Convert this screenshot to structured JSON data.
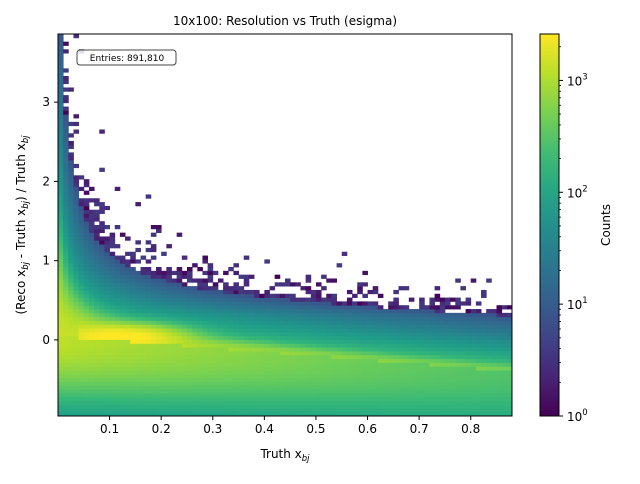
{
  "chart_data": {
    "type": "heatmap",
    "title": "10x100: Resolution vs Truth (esigma)",
    "xlabel_main": "Truth x",
    "xlabel_sub": "bj",
    "ylabel_parts": [
      {
        "t": "(Reco x",
        "sub": false
      },
      {
        "t": "bj",
        "sub": true
      },
      {
        "t": " - Truth x",
        "sub": false
      },
      {
        "t": "bj",
        "sub": true
      },
      {
        "t": ") / Truth x",
        "sub": false
      },
      {
        "t": "bj",
        "sub": true
      }
    ],
    "xlim": [
      0.0,
      0.88
    ],
    "ylim": [
      -0.96,
      3.86
    ],
    "xticks": [
      0.1,
      0.2,
      0.3,
      0.4,
      0.5,
      0.6,
      0.7,
      0.8
    ],
    "xtick_labels": [
      "0.1",
      "0.2",
      "0.3",
      "0.4",
      "0.5",
      "0.6",
      "0.7",
      "0.8"
    ],
    "yticks": [
      0,
      1,
      2,
      3
    ],
    "ytick_labels": [
      "0",
      "1",
      "2",
      "3"
    ],
    "colorbar": {
      "label": "Counts",
      "scale": "log",
      "range": [
        1,
        2600
      ],
      "tick_values": [
        1,
        10,
        100,
        1000
      ],
      "tick_labels": [
        {
          "base": "10",
          "exp": "0"
        },
        {
          "base": "10",
          "exp": "1"
        },
        {
          "base": "10",
          "exp": "2"
        },
        {
          "base": "10",
          "exp": "3"
        }
      ],
      "colormap": "viridis"
    },
    "stats_box": "Entries: 891,810",
    "grid": false
  }
}
